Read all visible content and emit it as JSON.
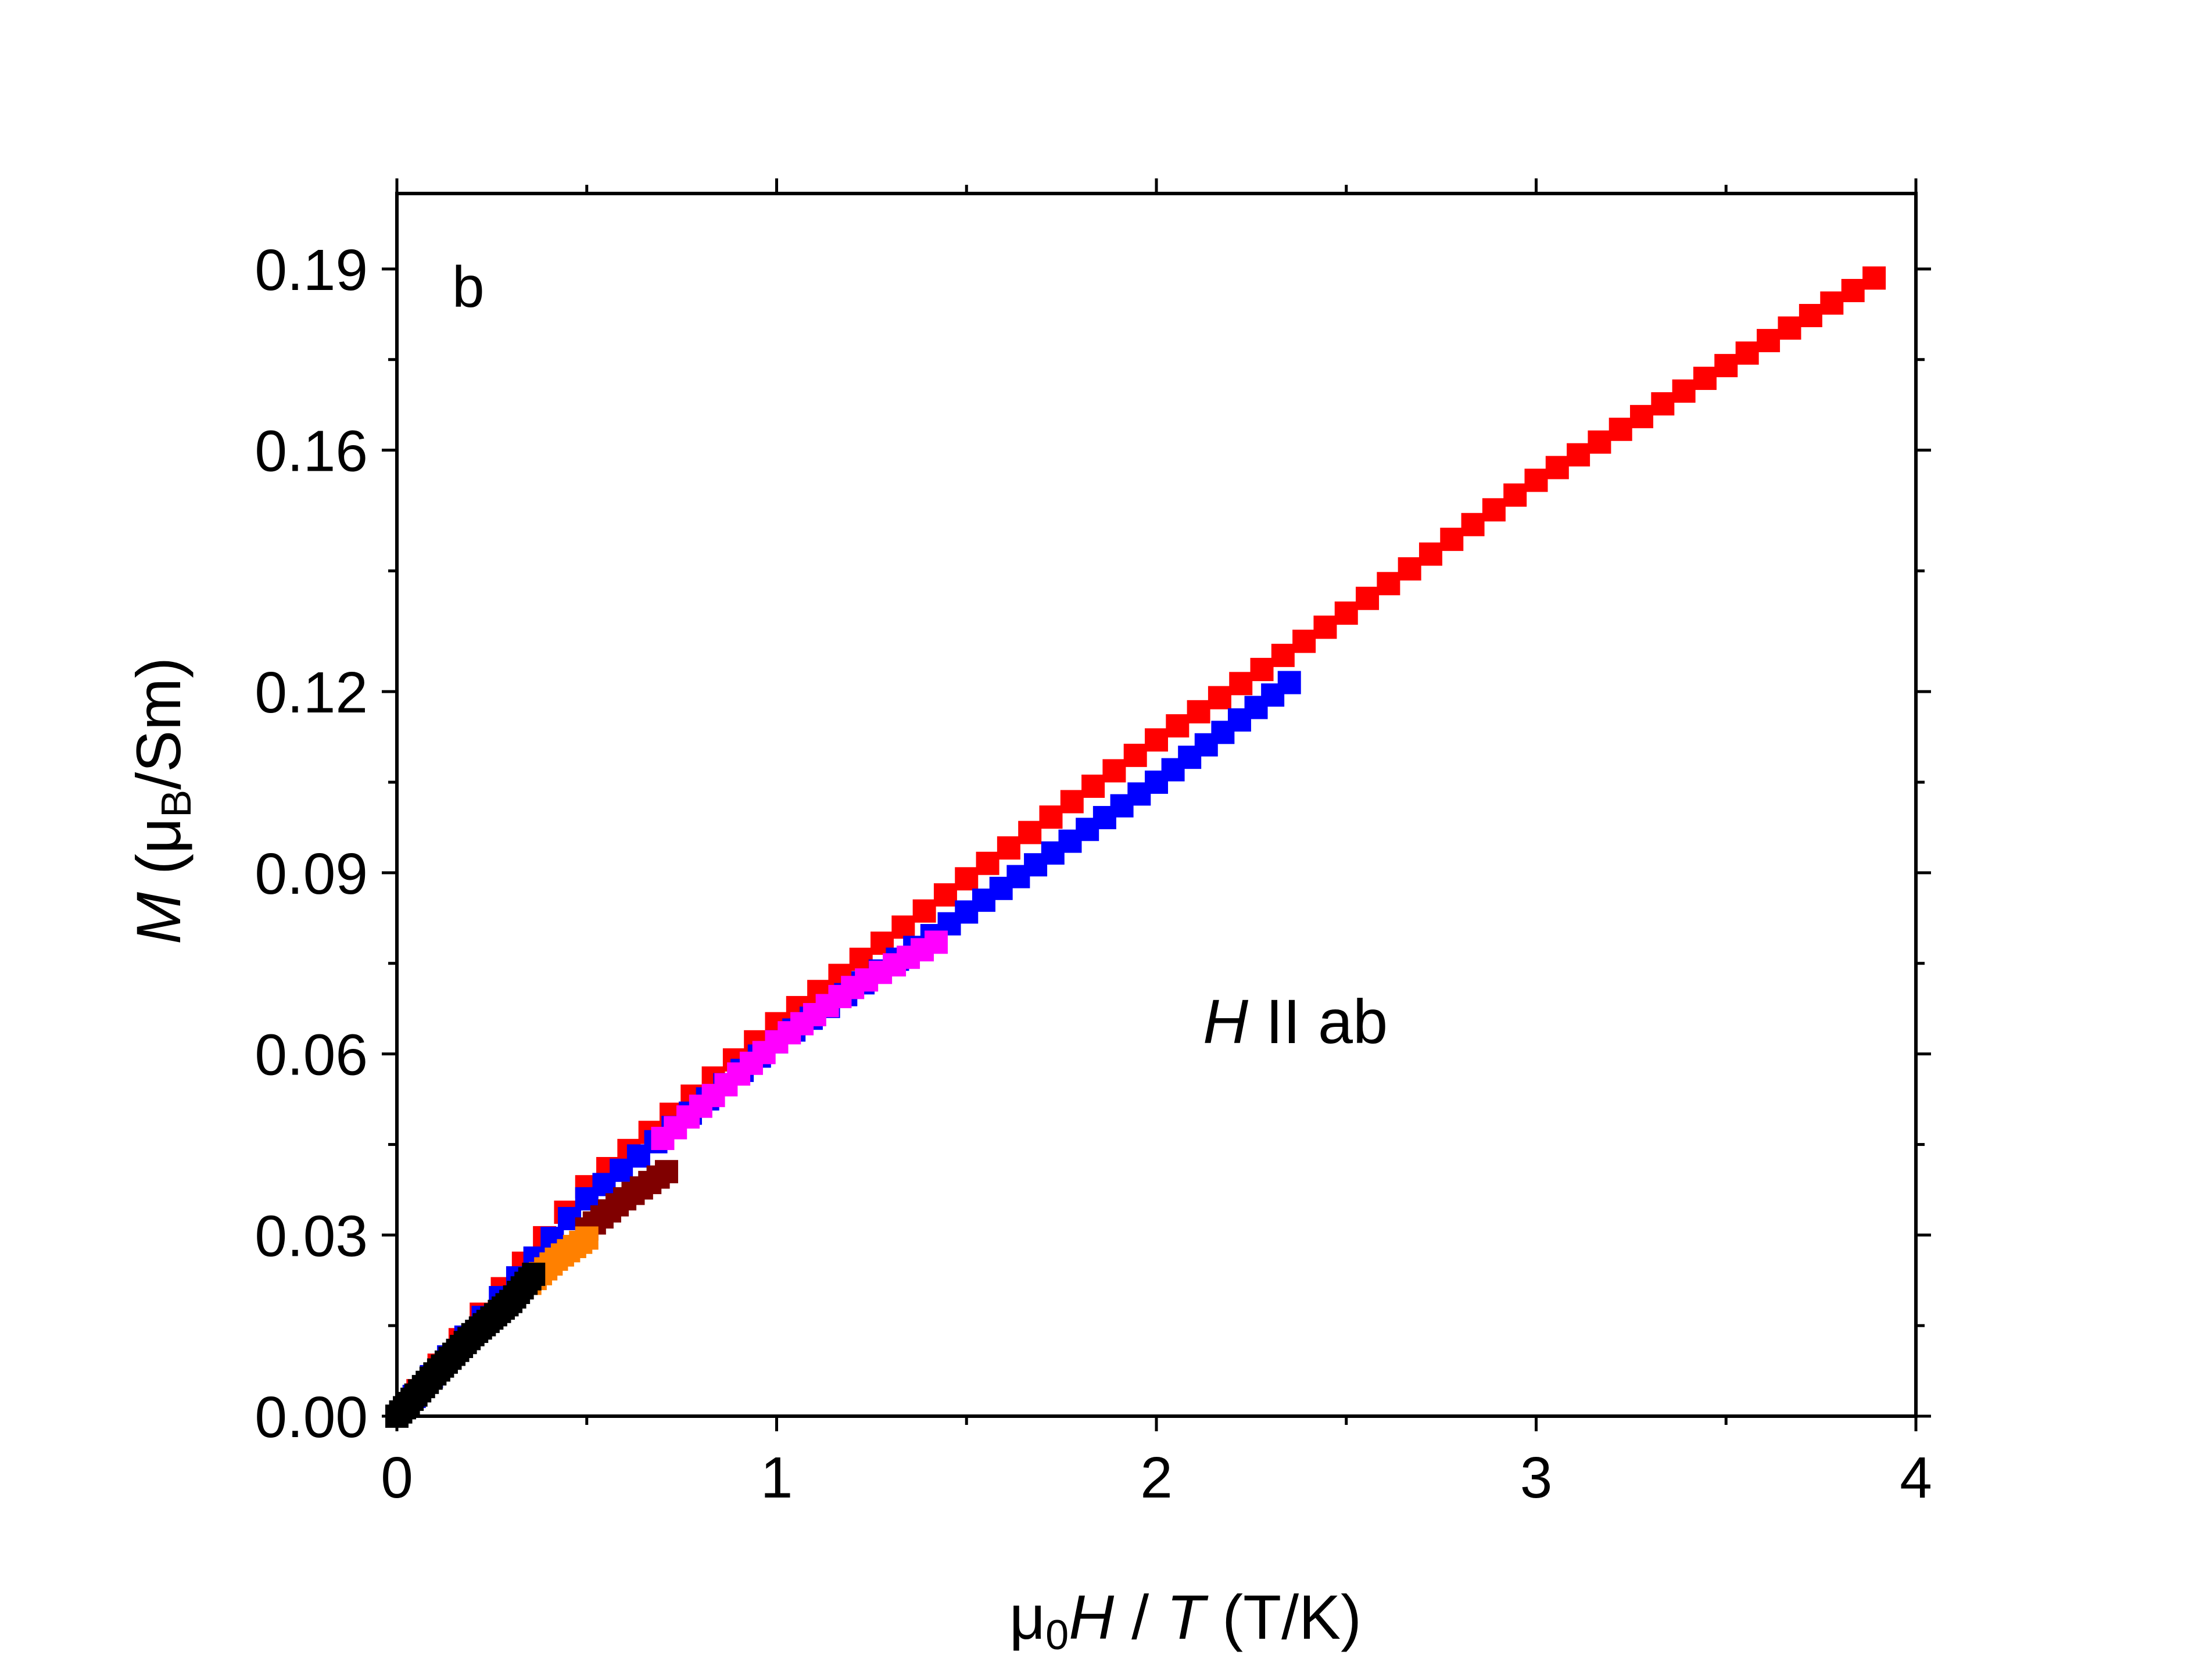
{
  "chart_data": {
    "type": "scatter",
    "panel_label": "b",
    "annotation": {
      "field": "H",
      "text": " II ab"
    },
    "xlabel": {
      "prefix": "μ",
      "sub": "0",
      "var1": "H",
      "sep": " / ",
      "var2": "T",
      "unit": " (T/K)"
    },
    "ylabel": {
      "var": "M",
      "pre": " (μ",
      "sub": "B",
      "post": "/Sm)"
    },
    "xlim": [
      0,
      4
    ],
    "ylim": [
      0,
      0.2025
    ],
    "xticks": [
      0,
      1,
      2,
      3,
      4
    ],
    "xtick_labels": [
      "0",
      "1",
      "2",
      "3",
      "4"
    ],
    "yticks": [
      0,
      0.03,
      0.06,
      0.09,
      0.12,
      0.16,
      0.19
    ],
    "ytick_labels": [
      "0.00",
      "0.03",
      "0.06",
      "0.09",
      "0.12",
      "0.16",
      "0.19"
    ],
    "series": [
      {
        "name": "red",
        "color": "#ff0000",
        "step": 0.055,
        "values": [
          [
            0.0,
            0.0
          ],
          [
            0.5,
            0.038
          ],
          [
            1.0,
            0.065
          ],
          [
            1.5,
            0.089
          ],
          [
            2.0,
            0.112
          ],
          [
            2.5,
            0.133
          ],
          [
            3.0,
            0.155
          ],
          [
            3.5,
            0.174
          ],
          [
            3.89,
            0.1885
          ]
        ]
      },
      {
        "name": "blue",
        "color": "#0000ff",
        "step": 0.045,
        "values": [
          [
            0.0,
            0.0
          ],
          [
            0.5,
            0.036
          ],
          [
            1.0,
            0.062
          ],
          [
            1.5,
            0.0835
          ],
          [
            2.0,
            0.105
          ],
          [
            2.35,
            0.1215
          ]
        ]
      },
      {
        "name": "magenta",
        "color": "#ff00ff",
        "step": 0.035,
        "values": [
          [
            0.7,
            0.046
          ],
          [
            1.0,
            0.062
          ],
          [
            1.2,
            0.071
          ],
          [
            1.42,
            0.0785
          ]
        ]
      },
      {
        "name": "maroon",
        "color": "#800000",
        "step": 0.02,
        "values": [
          [
            0.5,
            0.031
          ],
          [
            0.6,
            0.036
          ],
          [
            0.71,
            0.0405
          ]
        ]
      },
      {
        "name": "orange",
        "color": "#ff8000",
        "step": 0.015,
        "values": [
          [
            0.35,
            0.022
          ],
          [
            0.42,
            0.026
          ],
          [
            0.5,
            0.0295
          ]
        ]
      },
      {
        "name": "black",
        "color": "#000000",
        "step": 0.01,
        "values": [
          [
            0.0,
            0.0
          ],
          [
            0.1,
            0.007
          ],
          [
            0.2,
            0.0135
          ],
          [
            0.3,
            0.019
          ],
          [
            0.36,
            0.0235
          ]
        ]
      }
    ]
  }
}
